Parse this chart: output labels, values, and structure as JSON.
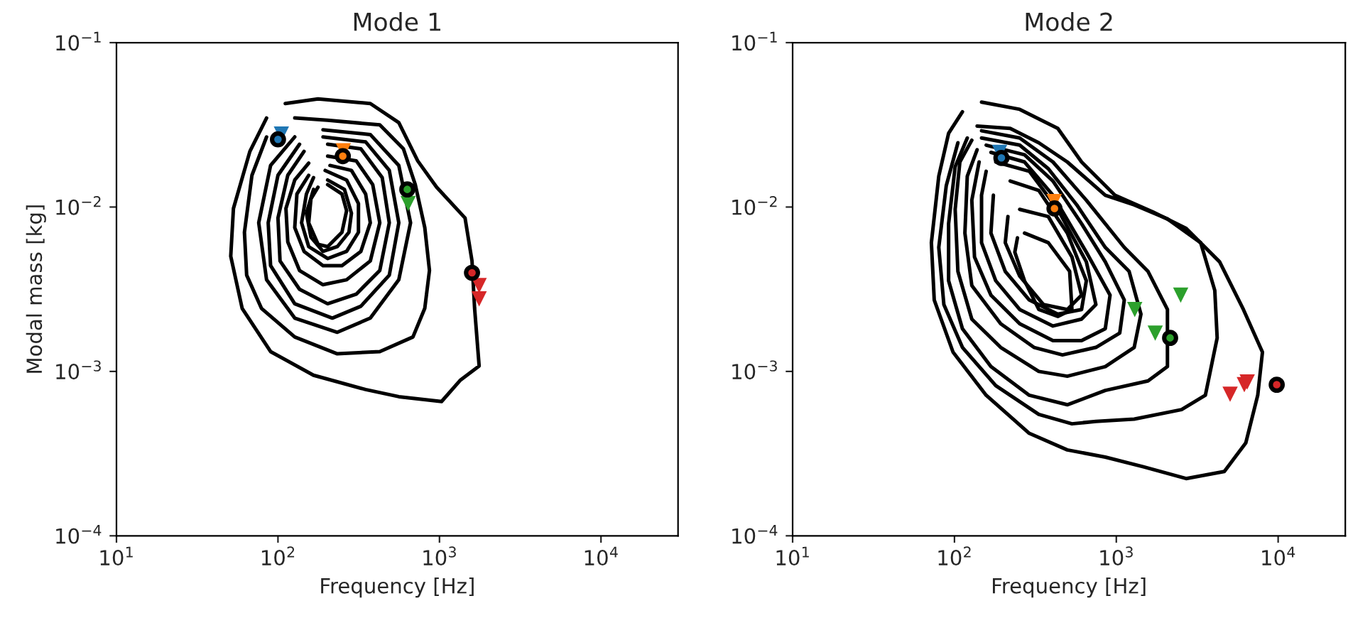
{
  "chart_data": [
    {
      "type": "line",
      "title": "Mode 1",
      "xlabel": "Frequency [Hz]",
      "ylabel": "Modal mass [kg]",
      "log": "xy",
      "grid": false,
      "legend": false,
      "xlim": [
        10,
        30000
      ],
      "ylim": [
        0.0001,
        0.1
      ],
      "xticks": [
        {
          "value": 10,
          "label": "10$^{1}$"
        },
        {
          "value": 100,
          "label": "10$^{2}$"
        },
        {
          "value": 1000,
          "label": "10$^{3}$"
        },
        {
          "value": 10000,
          "label": "10$^{4}$"
        }
      ],
      "yticks": [
        {
          "value": 0.0001,
          "label": "10$^{−4}$"
        },
        {
          "value": 0.001,
          "label": "10$^{−3}$"
        },
        {
          "value": 0.01,
          "label": "10$^{−2}$"
        },
        {
          "value": 0.1,
          "label": "10$^{−1}$"
        }
      ],
      "series": [
        {
          "color": "#000000",
          "x": [
            111,
            177,
            373,
            560,
            733,
            960,
            1440,
            1590,
            1650,
            1760,
            1350,
            1030,
            560,
            349,
            166,
            90,
            60,
            51,
            53,
            67,
            85
          ],
          "values": [
            0.0426,
            0.0455,
            0.0426,
            0.0326,
            0.0191,
            0.0132,
            0.00858,
            0.0047,
            0.00242,
            0.00108,
            0.000887,
            0.000656,
            0.000702,
            0.000776,
            0.000948,
            0.00132,
            0.00242,
            0.00502,
            0.0098,
            0.0218,
            0.0348
          ]
        },
        {
          "color": "#000000",
          "x": [
            127,
            203,
            427,
            598,
            708,
            811,
            867,
            811,
            685,
            427,
            233,
            127,
            79,
            64,
            62,
            69,
            85
          ],
          "values": [
            0.0348,
            0.0337,
            0.0316,
            0.0226,
            0.0137,
            0.0075,
            0.00411,
            0.00242,
            0.00162,
            0.00132,
            0.00128,
            0.00162,
            0.00242,
            0.00385,
            0.00702,
            0.0156,
            0.0267
          ]
        },
        {
          "color": "#000000",
          "x": [
            190,
            373,
            560,
            662,
            560,
            373,
            233,
            127,
            85,
            76,
            90,
            127
          ],
          "values": [
            0.0295,
            0.0276,
            0.0179,
            0.00802,
            0.00361,
            0.00211,
            0.00173,
            0.00211,
            0.00361,
            0.00802,
            0.0179,
            0.0267
          ]
        },
        {
          "color": "#000000",
          "x": [
            190,
            349,
            489,
            560,
            489,
            326,
            217,
            127,
            90,
            87,
            100,
            136
          ],
          "values": [
            0.0267,
            0.0249,
            0.0167,
            0.00802,
            0.00385,
            0.00249,
            0.00211,
            0.00258,
            0.0044,
            0.00802,
            0.0156,
            0.0241
          ]
        },
        {
          "color": "#000000",
          "x": [
            203,
            326,
            442,
            489,
            427,
            305,
            203,
            136,
            103,
            100,
            115,
            145
          ],
          "values": [
            0.0241,
            0.0226,
            0.0151,
            0.00802,
            0.00411,
            0.00295,
            0.00258,
            0.00316,
            0.0047,
            0.00858,
            0.0156,
            0.0218
          ]
        },
        {
          "color": "#000000",
          "x": [
            203,
            305,
            386,
            427,
            373,
            266,
            190,
            136,
            115,
            112,
            127,
            155
          ],
          "values": [
            0.0204,
            0.0191,
            0.0137,
            0.00802,
            0.0047,
            0.00361,
            0.00337,
            0.00411,
            0.00614,
            0.0098,
            0.0146,
            0.0185
          ]
        },
        {
          "color": "#000000",
          "x": [
            210,
            285,
            349,
            373,
            326,
            249,
            190,
            145,
            127,
            131,
            155
          ],
          "values": [
            0.0179,
            0.0167,
            0.012,
            0.00802,
            0.00537,
            0.0044,
            0.0044,
            0.00537,
            0.0075,
            0.012,
            0.0156
          ]
        },
        {
          "color": "#000000",
          "x": [
            196,
            266,
            315,
            315,
            266,
            203,
            155,
            140,
            150,
            166
          ],
          "values": [
            0.0167,
            0.0146,
            0.0105,
            0.00702,
            0.00537,
            0.00486,
            0.00574,
            0.00802,
            0.012,
            0.0151
          ]
        },
        {
          "color": "#000000",
          "x": [
            203,
            258,
            285,
            275,
            233,
            190,
            160,
            150,
            166
          ],
          "values": [
            0.0146,
            0.0128,
            0.00917,
            0.00702,
            0.00574,
            0.00537,
            0.00656,
            0.00917,
            0.0128
          ]
        },
        {
          "color": "#000000",
          "x": [
            203,
            249,
            266,
            249,
            203,
            177,
            155,
            160,
            177
          ],
          "values": [
            0.0137,
            0.012,
            0.0095,
            0.00702,
            0.00574,
            0.00594,
            0.00802,
            0.0112,
            0.0132
          ]
        },
        {
          "type": "scatter",
          "marker": "triangle",
          "colors": [
            "#1f77b4",
            "#ff7f0e",
            "#2ca02c",
            "#d62728",
            "#d62728"
          ],
          "x": [
            105,
            254,
            640,
            1760,
            1760
          ],
          "values": [
            0.0278,
            0.022,
            0.0105,
            0.00333,
            0.00276
          ]
        },
        {
          "type": "scatter",
          "marker": "circle",
          "colors": [
            "#1f77b4",
            "#ff7f0e",
            "#2ca02c",
            "#d62728"
          ],
          "x": [
            100,
            252,
            632,
            1590
          ],
          "values": [
            0.0258,
            0.0204,
            0.0128,
            0.00398
          ]
        }
      ]
    },
    {
      "type": "line",
      "title": "Mode 2",
      "xlabel": "Frequency [Hz]",
      "log": "xy",
      "grid": false,
      "legend": false,
      "xlim": [
        10,
        26000
      ],
      "ylim": [
        0.0001,
        0.1
      ],
      "xticks": [
        {
          "value": 10,
          "label": "10$^{1}$"
        },
        {
          "value": 100,
          "label": "10$^{2}$"
        },
        {
          "value": 1000,
          "label": "10$^{3}$"
        },
        {
          "value": 10000,
          "label": "10$^{4}$"
        }
      ],
      "yticks": [
        {
          "value": 0.0001,
          "label": "10$^{−4}$"
        },
        {
          "value": 0.001,
          "label": "10$^{−3}$"
        },
        {
          "value": 0.01,
          "label": "10$^{−2}$"
        },
        {
          "value": 0.1,
          "label": "10$^{−1}$"
        }
      ],
      "series": [
        {
          "color": "#000000",
          "x": [
            147,
            253,
            435,
            610,
            980,
            1680,
            2700,
            4350,
            6100,
            8000,
            7480,
            6310,
            4650,
            2700,
            1470,
            855,
            498,
            290,
            157,
            98,
            75,
            72,
            80,
            92,
            112
          ],
          "values": [
            0.0435,
            0.0393,
            0.0301,
            0.0188,
            0.0118,
            0.00935,
            0.00741,
            0.00464,
            0.00238,
            0.00131,
            0.000716,
            0.000367,
            0.000246,
            0.000223,
            0.000263,
            0.000301,
            0.000333,
            0.00042,
            0.000716,
            0.00131,
            0.00272,
            0.00607,
            0.0154,
            0.0281,
            0.038
          ]
        },
        {
          "color": "#000000",
          "x": [
            138,
            221,
            332,
            498,
            855,
            1290,
            2070,
            3320,
            4060,
            4200,
            3550,
            2530,
            1290,
            748,
            532,
            332,
            180,
            112,
            86,
            80,
            89,
            105
          ],
          "values": [
            0.0311,
            0.0301,
            0.0246,
            0.0188,
            0.0118,
            0.0103,
            0.00847,
            0.00607,
            0.00311,
            0.0016,
            0.000716,
            0.000586,
            0.000513,
            0.000497,
            0.00048,
            0.000548,
            0.000819,
            0.0014,
            0.00255,
            0.00568,
            0.0135,
            0.0246
          ]
        },
        {
          "color": "#000000",
          "x": [
            147,
            253,
            406,
            653,
            1120,
            1570,
            2070,
            2070,
            1570,
            855,
            498,
            290,
            168,
            112,
            92,
            92,
            101,
            120
          ],
          "values": [
            0.0291,
            0.0263,
            0.0188,
            0.011,
            0.00568,
            0.00406,
            0.00238,
            0.00107,
            0.000875,
            0.000766,
            0.000627,
            0.000716,
            0.00107,
            0.00182,
            0.00356,
            0.00792,
            0.0176,
            0.0263
          ]
        },
        {
          "color": "#000000",
          "x": [
            147,
            253,
            380,
            570,
            855,
            1200,
            1420,
            1290,
            855,
            498,
            332,
            193,
            128,
            105,
            101,
            108,
            128
          ],
          "values": [
            0.0263,
            0.0238,
            0.0171,
            0.0103,
            0.00568,
            0.00406,
            0.00223,
            0.0014,
            0.00107,
            0.000935,
            0.001,
            0.0014,
            0.00208,
            0.00406,
            0.00968,
            0.0188,
            0.0255
          ]
        },
        {
          "color": "#000000",
          "x": [
            157,
            271,
            406,
            610,
            855,
            1120,
            1050,
            748,
            465,
            310,
            193,
            128,
            116,
            120,
            138
          ],
          "values": [
            0.0238,
            0.0208,
            0.0144,
            0.00792,
            0.00464,
            0.00272,
            0.00171,
            0.0014,
            0.00126,
            0.0014,
            0.00195,
            0.00333,
            0.00694,
            0.0154,
            0.0223
          ]
        },
        {
          "color": "#000000",
          "x": [
            168,
            271,
            406,
            653,
            915,
            855,
            610,
            406,
            253,
            168,
            133,
            128,
            142
          ],
          "values": [
            0.0215,
            0.0188,
            0.0118,
            0.00531,
            0.00291,
            0.00182,
            0.00154,
            0.00154,
            0.00195,
            0.00291,
            0.00497,
            0.011,
            0.0188
          ]
        },
        {
          "color": "#000000",
          "x": [
            180,
            290,
            435,
            653,
            748,
            610,
            406,
            253,
            180,
            147,
            147,
            157
          ],
          "values": [
            0.0188,
            0.0165,
            0.00968,
            0.00464,
            0.00255,
            0.00208,
            0.00189,
            0.00238,
            0.00356,
            0.00607,
            0.0118,
            0.0165
          ]
        },
        {
          "color": "#000000",
          "x": [
            221,
            332,
            498,
            653,
            610,
            435,
            290,
            206,
            168,
            174
          ],
          "values": [
            0.0144,
            0.0126,
            0.00694,
            0.00356,
            0.00238,
            0.00223,
            0.00272,
            0.00406,
            0.00694,
            0.0118
          ]
        },
        {
          "color": "#000000",
          "x": [
            253,
            380,
            532,
            610,
            498,
            355,
            253,
            206,
            214
          ],
          "values": [
            0.00968,
            0.00875,
            0.00497,
            0.00291,
            0.00238,
            0.00255,
            0.0038,
            0.00607,
            0.00875
          ]
        },
        {
          "color": "#000000",
          "x": [
            271,
            380,
            515,
            532,
            435,
            332,
            271,
            236,
            245
          ],
          "values": [
            0.00694,
            0.00607,
            0.00406,
            0.00238,
            0.00216,
            0.00238,
            0.00356,
            0.00531,
            0.00649
          ]
        },
        {
          "type": "scatter",
          "marker": "triangle",
          "colors": [
            "#1f77b4",
            "#ff7f0e",
            "#2ca02c",
            "#2ca02c",
            "#2ca02c",
            "#d62728",
            "#d62728",
            "#d62728"
          ],
          "x": [
            190,
            413,
            1300,
            1740,
            2500,
            5050,
            6180,
            6440
          ],
          "values": [
            0.0215,
            0.0108,
            0.00238,
            0.00171,
            0.00291,
            0.000726,
            0.00083,
            0.000863
          ]
        },
        {
          "type": "scatter",
          "marker": "circle",
          "colors": [
            "#1f77b4",
            "#ff7f0e",
            "#2ca02c",
            "#d62728"
          ],
          "x": [
            195,
            415,
            2150,
            9800
          ],
          "values": [
            0.0199,
            0.0098,
            0.0016,
            0.00083
          ]
        }
      ]
    }
  ]
}
